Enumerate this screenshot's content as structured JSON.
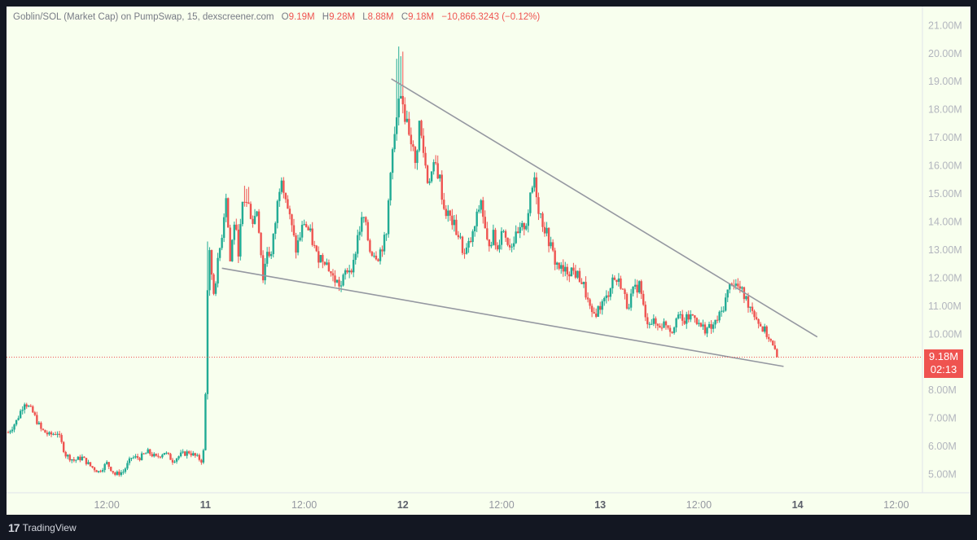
{
  "header": {
    "title": "Goblin/SOL (Market Cap) on PumpSwap, 15, dexscreener.com",
    "open_key": "O",
    "open_val": "9.19M",
    "high_key": "H",
    "high_val": "9.28M",
    "low_key": "L",
    "low_val": "8.88M",
    "close_key": "C",
    "close_val": "9.18M",
    "change": "−10,866.3243 (−0.12%)"
  },
  "price_tag": {
    "price": "9.18M",
    "countdown": "02:13"
  },
  "footer": {
    "brand": "TradingView",
    "logo_icon": "tradingview-logo-icon"
  },
  "colors": {
    "up": "#22ab94",
    "down": "#ef5350",
    "background": "#f8ffee",
    "trendline": "#9598a1",
    "price_line": "#ef5350"
  },
  "chart_data": {
    "type": "candlestick",
    "y_unit": "M",
    "ylim": [
      4.5,
      21.5
    ],
    "y_ticks": [
      5,
      6,
      7,
      8,
      9,
      10,
      11,
      12,
      13,
      14,
      15,
      16,
      17,
      18,
      19,
      20,
      21
    ],
    "y_tick_labels": [
      "5.00M",
      "6.00M",
      "7.00M",
      "8.00M",
      "9.00M",
      "10.00M",
      "11.00M",
      "12.00M",
      "13.00M",
      "14.00M",
      "15.00M",
      "16.00M",
      "17.00M",
      "18.00M",
      "19.00M",
      "20.00M",
      "21.00M"
    ],
    "x_ticks": [
      {
        "t": 12,
        "label": "12:00",
        "bold": false
      },
      {
        "t": 24,
        "label": "11",
        "bold": true
      },
      {
        "t": 36,
        "label": "12:00",
        "bold": false
      },
      {
        "t": 48,
        "label": "12",
        "bold": true
      },
      {
        "t": 60,
        "label": "12:00",
        "bold": false
      },
      {
        "t": 72,
        "label": "13",
        "bold": true
      },
      {
        "t": 84,
        "label": "12:00",
        "bold": false
      },
      {
        "t": 96,
        "label": "14",
        "bold": true
      },
      {
        "t": 108,
        "label": "12:00",
        "bold": false
      }
    ],
    "last_price": 9.18,
    "price_path": [
      [
        0.0,
        6.5
      ],
      [
        1.0,
        6.9
      ],
      [
        2.0,
        7.6
      ],
      [
        3.0,
        7.2
      ],
      [
        4.0,
        6.6
      ],
      [
        5.0,
        6.4
      ],
      [
        6.0,
        6.5
      ],
      [
        7.0,
        5.7
      ],
      [
        8.0,
        5.5
      ],
      [
        9.0,
        5.6
      ],
      [
        10.0,
        5.3
      ],
      [
        11.0,
        5.1
      ],
      [
        12.0,
        5.4
      ],
      [
        13.0,
        5.0
      ],
      [
        14.0,
        5.1
      ],
      [
        15.0,
        5.6
      ],
      [
        16.0,
        5.6
      ],
      [
        17.0,
        5.8
      ],
      [
        18.0,
        5.6
      ],
      [
        19.0,
        5.8
      ],
      [
        20.0,
        5.5
      ],
      [
        21.0,
        5.7
      ],
      [
        22.0,
        5.8
      ],
      [
        23.5,
        5.5
      ],
      [
        23.9,
        6.0
      ],
      [
        24.2,
        11.5
      ],
      [
        24.5,
        12.8
      ],
      [
        25.0,
        11.5
      ],
      [
        25.5,
        12.5
      ],
      [
        26.0,
        13.6
      ],
      [
        26.5,
        15.0
      ],
      [
        27.0,
        12.6
      ],
      [
        27.5,
        14.0
      ],
      [
        28.0,
        13.0
      ],
      [
        28.5,
        14.5
      ],
      [
        29.0,
        14.8
      ],
      [
        29.8,
        14.0
      ],
      [
        30.3,
        14.5
      ],
      [
        31.0,
        12.0
      ],
      [
        31.5,
        13.0
      ],
      [
        32.0,
        12.8
      ],
      [
        32.5,
        14.0
      ],
      [
        33.2,
        15.8
      ],
      [
        34.0,
        14.5
      ],
      [
        35.0,
        13.0
      ],
      [
        36.0,
        14.0
      ],
      [
        36.8,
        13.5
      ],
      [
        37.5,
        12.8
      ],
      [
        38.5,
        12.7
      ],
      [
        39.5,
        12.0
      ],
      [
        40.5,
        11.7
      ],
      [
        41.0,
        12.2
      ],
      [
        42.0,
        12.5
      ],
      [
        42.5,
        13.5
      ],
      [
        43.2,
        14.2
      ],
      [
        44.0,
        13.0
      ],
      [
        45.0,
        12.8
      ],
      [
        46.0,
        13.5
      ],
      [
        46.5,
        16.0
      ],
      [
        47.0,
        17.0
      ],
      [
        47.6,
        18.5
      ],
      [
        48.3,
        17.8
      ],
      [
        49.0,
        17.0
      ],
      [
        49.5,
        16.0
      ],
      [
        50.0,
        17.5
      ],
      [
        50.5,
        16.5
      ],
      [
        51.0,
        15.5
      ],
      [
        52.0,
        16.0
      ],
      [
        52.5,
        15.5
      ],
      [
        53.0,
        14.5
      ],
      [
        54.0,
        14.0
      ],
      [
        54.8,
        13.5
      ],
      [
        55.5,
        12.8
      ],
      [
        56.5,
        13.5
      ],
      [
        57.5,
        14.8
      ],
      [
        58.2,
        13.2
      ],
      [
        59.0,
        13.5
      ],
      [
        59.5,
        13.0
      ],
      [
        60.0,
        13.8
      ],
      [
        61.0,
        13.2
      ],
      [
        62.0,
        13.5
      ],
      [
        63.0,
        14.0
      ],
      [
        64.0,
        15.6
      ],
      [
        64.5,
        14.5
      ],
      [
        65.0,
        14.0
      ],
      [
        65.8,
        13.3
      ],
      [
        66.5,
        12.6
      ],
      [
        67.5,
        12.2
      ],
      [
        68.5,
        12.3
      ],
      [
        69.5,
        12.0
      ],
      [
        70.0,
        11.7
      ],
      [
        71.0,
        10.6
      ],
      [
        72.0,
        11.0
      ],
      [
        72.8,
        11.3
      ],
      [
        73.5,
        12.0
      ],
      [
        74.5,
        11.8
      ],
      [
        75.3,
        11.0
      ],
      [
        76.0,
        11.5
      ],
      [
        76.8,
        11.8
      ],
      [
        77.5,
        10.5
      ],
      [
        78.0,
        10.5
      ],
      [
        79.0,
        10.3
      ],
      [
        80.0,
        10.4
      ],
      [
        80.8,
        10.1
      ],
      [
        81.3,
        10.8
      ],
      [
        82.0,
        10.4
      ],
      [
        82.8,
        10.6
      ],
      [
        83.5,
        10.7
      ],
      [
        84.0,
        10.3
      ],
      [
        84.8,
        10.2
      ],
      [
        85.5,
        10.2
      ],
      [
        86.0,
        10.4
      ],
      [
        86.8,
        10.8
      ],
      [
        87.5,
        11.5
      ],
      [
        88.0,
        11.9
      ],
      [
        89.0,
        11.6
      ],
      [
        89.8,
        11.2
      ],
      [
        90.5,
        10.9
      ],
      [
        91.5,
        10.3
      ],
      [
        92.5,
        9.9
      ],
      [
        93.3,
        9.3
      ],
      [
        93.7,
        9.18
      ]
    ],
    "trendlines": [
      {
        "t1": 46.6,
        "v1": 19.1,
        "t2": 98.4,
        "v2": 9.9
      },
      {
        "t1": 26.0,
        "v1": 12.35,
        "t2": 94.3,
        "v2": 8.85
      }
    ]
  }
}
